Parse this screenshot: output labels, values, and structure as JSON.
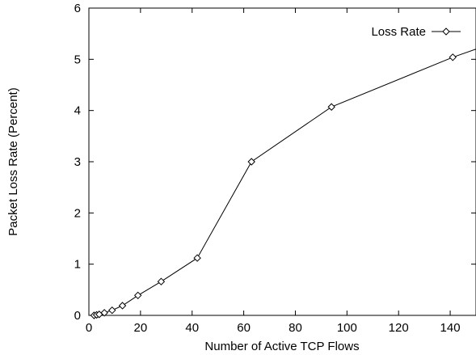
{
  "chart_data": {
    "type": "line",
    "title": "",
    "xlabel": "Number of Active TCP Flows",
    "ylabel": "Packet Loss Rate (Percent)",
    "xlim": [
      0,
      150
    ],
    "ylim": [
      0,
      6
    ],
    "xticks": [
      0,
      20,
      40,
      60,
      80,
      100,
      120,
      140
    ],
    "yticks": [
      0,
      1,
      2,
      3,
      4,
      5,
      6
    ],
    "grid": false,
    "legend_position": "top-right",
    "series": [
      {
        "name": "Loss Rate",
        "marker": "diamond",
        "color": "#000000",
        "x": [
          2,
          3,
          4,
          6,
          9,
          13,
          19,
          28,
          42,
          63,
          94,
          141,
          150
        ],
        "y": [
          0.0,
          0.01,
          0.02,
          0.05,
          0.1,
          0.19,
          0.39,
          0.66,
          1.12,
          3.0,
          4.07,
          5.04,
          5.2
        ],
        "markers_at": [
          0,
          1,
          2,
          3,
          4,
          5,
          6,
          7,
          8,
          9,
          10,
          11
        ]
      }
    ]
  }
}
